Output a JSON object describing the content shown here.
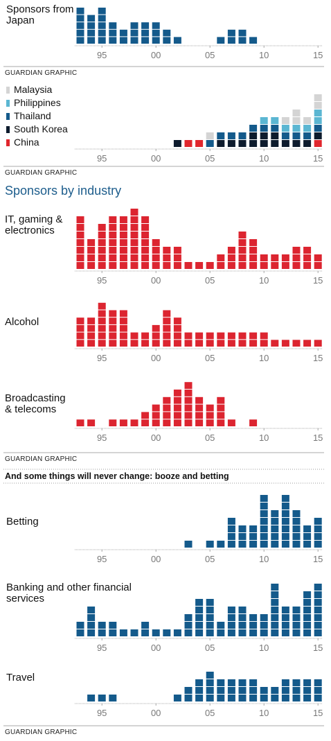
{
  "chart_data": [
    {
      "type": "unit",
      "title": "Sponsors from Japan",
      "color": "#145a8b",
      "categories": [
        null,
        null,
        "95",
        null,
        null,
        null,
        null,
        "00",
        null,
        null,
        null,
        null,
        "05",
        null,
        null,
        null,
        null,
        "10",
        null,
        null,
        null,
        null,
        "15"
      ],
      "values": [
        5,
        4,
        5,
        3,
        2,
        3,
        3,
        3,
        2,
        1,
        0,
        0,
        0,
        1,
        2,
        2,
        1,
        0,
        0,
        0,
        0,
        0,
        0
      ]
    },
    {
      "type": "unit_stacked",
      "categories": [
        null,
        null,
        "95",
        null,
        null,
        null,
        null,
        "00",
        null,
        null,
        null,
        null,
        "05",
        null,
        null,
        null,
        null,
        "10",
        null,
        null,
        null,
        null,
        "15"
      ],
      "series": [
        {
          "name": "China",
          "color": "#e0262d",
          "values": [
            0,
            0,
            0,
            0,
            0,
            0,
            0,
            0,
            0,
            0,
            1,
            1,
            0,
            0,
            0,
            0,
            0,
            0,
            0,
            0,
            0,
            0,
            1
          ]
        },
        {
          "name": "South Korea",
          "color": "#0d1b2d",
          "values": [
            0,
            0,
            0,
            0,
            0,
            0,
            0,
            0,
            0,
            1,
            0,
            0,
            0,
            1,
            1,
            1,
            2,
            2,
            2,
            1,
            1,
            1,
            1
          ]
        },
        {
          "name": "Thailand",
          "color": "#145a8b",
          "values": [
            0,
            0,
            0,
            0,
            0,
            0,
            0,
            0,
            0,
            0,
            0,
            0,
            1,
            1,
            1,
            1,
            1,
            1,
            1,
            1,
            1,
            1,
            1
          ]
        },
        {
          "name": "Philippines",
          "color": "#5bb6d2",
          "values": [
            0,
            0,
            0,
            0,
            0,
            0,
            0,
            0,
            0,
            0,
            0,
            0,
            0,
            0,
            0,
            0,
            0,
            1,
            1,
            1,
            1,
            1,
            2
          ]
        },
        {
          "name": "Malaysia",
          "color": "#d4d4d4",
          "values": [
            0,
            0,
            0,
            0,
            0,
            0,
            0,
            0,
            0,
            0,
            0,
            0,
            1,
            0,
            0,
            0,
            0,
            0,
            0,
            1,
            2,
            1,
            2
          ]
        }
      ]
    },
    {
      "type": "unit",
      "title": "IT, gaming & electronics",
      "color": "#dc2530",
      "categories": [
        null,
        null,
        "95",
        null,
        null,
        null,
        null,
        "00",
        null,
        null,
        null,
        null,
        "05",
        null,
        null,
        null,
        null,
        "10",
        null,
        null,
        null,
        null,
        "15"
      ],
      "values": [
        7,
        4,
        6,
        7,
        7,
        8,
        7,
        4,
        3,
        3,
        1,
        1,
        1,
        2,
        3,
        5,
        4,
        2,
        2,
        2,
        3,
        3,
        2
      ]
    },
    {
      "type": "unit",
      "title": "Alcohol",
      "color": "#dc2530",
      "categories": [
        null,
        null,
        "95",
        null,
        null,
        null,
        null,
        "00",
        null,
        null,
        null,
        null,
        "05",
        null,
        null,
        null,
        null,
        "10",
        null,
        null,
        null,
        null,
        "15"
      ],
      "values": [
        4,
        4,
        6,
        5,
        5,
        2,
        2,
        3,
        5,
        4,
        2,
        2,
        2,
        2,
        2,
        2,
        2,
        2,
        1,
        1,
        1,
        1,
        1
      ]
    },
    {
      "type": "unit",
      "title": "Broadcasting & telecoms",
      "color": "#dc2530",
      "categories": [
        null,
        null,
        "95",
        null,
        null,
        null,
        null,
        "00",
        null,
        null,
        null,
        null,
        "05",
        null,
        null,
        null,
        null,
        "10",
        null,
        null,
        null,
        null,
        "15"
      ],
      "values": [
        1,
        1,
        0,
        1,
        1,
        1,
        2,
        3,
        4,
        5,
        6,
        4,
        3,
        4,
        1,
        0,
        1,
        0,
        0,
        0,
        0,
        0,
        0
      ]
    },
    {
      "type": "unit",
      "title": "Betting",
      "color": "#145a8b",
      "categories": [
        null,
        null,
        "95",
        null,
        null,
        null,
        null,
        "00",
        null,
        null,
        null,
        null,
        "05",
        null,
        null,
        null,
        null,
        "10",
        null,
        null,
        null,
        null,
        "15"
      ],
      "values": [
        0,
        0,
        0,
        0,
        0,
        0,
        0,
        0,
        0,
        0,
        1,
        0,
        1,
        1,
        4,
        3,
        3,
        7,
        5,
        7,
        5,
        3,
        4
      ]
    },
    {
      "type": "unit",
      "title": "Banking and other financial services",
      "color": "#145a8b",
      "categories": [
        null,
        null,
        "95",
        null,
        null,
        null,
        null,
        "00",
        null,
        null,
        null,
        null,
        "05",
        null,
        null,
        null,
        null,
        "10",
        null,
        null,
        null,
        null,
        "15"
      ],
      "values": [
        2,
        4,
        2,
        2,
        1,
        1,
        2,
        1,
        1,
        1,
        3,
        5,
        5,
        2,
        4,
        4,
        3,
        3,
        7,
        4,
        4,
        6,
        7
      ]
    },
    {
      "type": "unit",
      "title": "Travel",
      "color": "#145a8b",
      "categories": [
        null,
        null,
        "95",
        null,
        null,
        null,
        null,
        "00",
        null,
        null,
        null,
        null,
        "05",
        null,
        null,
        null,
        null,
        "10",
        null,
        null,
        null,
        null,
        "15"
      ],
      "values": [
        0,
        1,
        1,
        1,
        0,
        0,
        0,
        0,
        0,
        1,
        2,
        3,
        4,
        3,
        3,
        3,
        3,
        2,
        2,
        3,
        3,
        3,
        3
      ]
    }
  ],
  "headings": [
    "Sponsors by industry",
    "And some things will never change: booze and betting"
  ],
  "footers": [
    "GUARDIAN GRAPHIC",
    "GUARDIAN GRAPHIC",
    "GUARDIAN GRAPHIC",
    "GUARDIAN GRAPHIC"
  ]
}
